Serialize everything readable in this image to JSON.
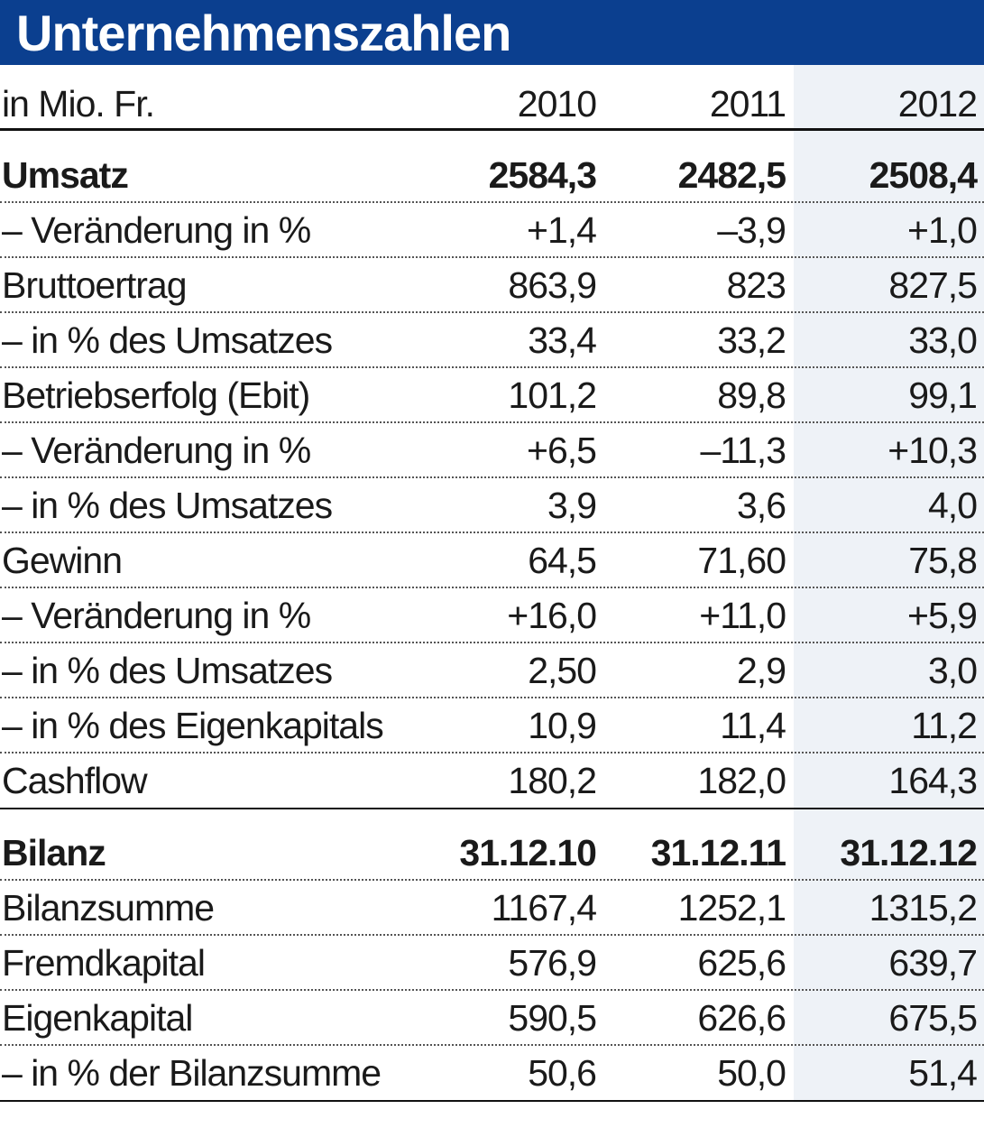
{
  "title": "Unternehmenszahlen",
  "colors": {
    "title_bg": "#0b3f8f",
    "title_text": "#ffffff",
    "highlight_column": "#eef2f7"
  },
  "chart_data": {
    "type": "table",
    "title": "Unternehmenszahlen",
    "unit_label": "in Mio. Fr.",
    "columns": [
      "2010",
      "2011",
      "2012"
    ],
    "income_rows": [
      {
        "label": "Umsatz",
        "values": [
          "2584,3",
          "2482,5",
          "2508,4"
        ],
        "bold": true
      },
      {
        "label": "– Veränderung in %",
        "values": [
          "+1,4",
          "–3,9",
          "+1,0"
        ],
        "bold": false
      },
      {
        "label": "Bruttoertrag",
        "values": [
          "863,9",
          "823",
          "827,5"
        ],
        "bold": false
      },
      {
        "label": "– in % des Umsatzes",
        "values": [
          "33,4",
          "33,2",
          "33,0"
        ],
        "bold": false
      },
      {
        "label": "Betriebserfolg (Ebit)",
        "values": [
          "101,2",
          "89,8",
          "99,1"
        ],
        "bold": false
      },
      {
        "label": "– Veränderung in %",
        "values": [
          "+6,5",
          "–11,3",
          "+10,3"
        ],
        "bold": false
      },
      {
        "label": "– in % des Umsatzes",
        "values": [
          "3,9",
          "3,6",
          "4,0"
        ],
        "bold": false
      },
      {
        "label": "Gewinn",
        "values": [
          "64,5",
          "71,60",
          "75,8"
        ],
        "bold": false
      },
      {
        "label": "– Veränderung in %",
        "values": [
          "+16,0",
          "+11,0",
          "+5,9"
        ],
        "bold": false
      },
      {
        "label": "– in % des Umsatzes",
        "values": [
          "2,50",
          "2,9",
          "3,0"
        ],
        "bold": false
      },
      {
        "label": "– in % des Eigenkapitals",
        "values": [
          "10,9",
          "11,4",
          "11,2"
        ],
        "bold": false
      },
      {
        "label": "Cashflow",
        "values": [
          "180,2",
          "182,0",
          "164,3"
        ],
        "bold": false
      }
    ],
    "balance_header": {
      "label": "Bilanz",
      "values": [
        "31.12.10",
        "31.12.11",
        "31.12.12"
      ]
    },
    "balance_rows": [
      {
        "label": "Bilanzsumme",
        "values": [
          "1167,4",
          "1252,1",
          "1315,2"
        ]
      },
      {
        "label": "Fremdkapital",
        "values": [
          "576,9",
          "625,6",
          "639,7"
        ]
      },
      {
        "label": "Eigenkapital",
        "values": [
          "590,5",
          "626,6",
          "675,5"
        ]
      },
      {
        "label": "– in % der Bilanzsumme",
        "values": [
          "50,6",
          "50,0",
          "51,4"
        ]
      }
    ]
  }
}
